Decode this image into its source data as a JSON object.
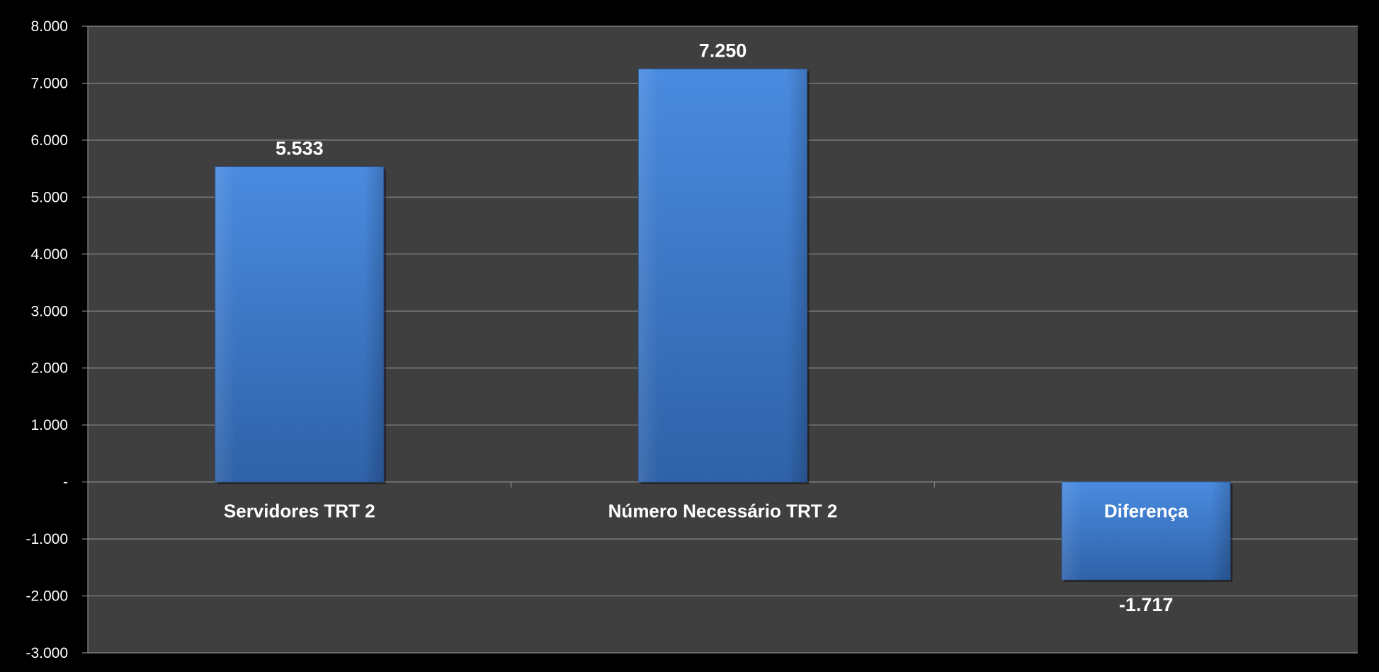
{
  "chart_data": {
    "type": "bar",
    "categories": [
      "Servidores TRT 2",
      "Número Necessário TRT 2",
      "Diferença"
    ],
    "values": [
      5533,
      7250,
      -1717
    ],
    "value_labels": [
      "5.533",
      "7.250",
      "-1.717"
    ],
    "ylim": [
      -3000,
      8000
    ],
    "y_ticks": [
      8000,
      7000,
      6000,
      5000,
      4000,
      3000,
      2000,
      1000,
      0,
      -1000,
      -2000,
      -3000
    ],
    "y_tick_labels": [
      "8.000",
      "7.000",
      "6.000",
      "5.000",
      "4.000",
      "3.000",
      "2.000",
      "1.000",
      "-",
      "-1.000",
      "-2.000",
      "-3.000"
    ],
    "title": "",
    "xlabel": "",
    "ylabel": "",
    "grid": true,
    "legend": "none",
    "colors": {
      "background": "#000000",
      "plot_area": "#3f3f3f",
      "gridline": "#8a8a8a",
      "bar_top": "#4a8be0",
      "bar_bottom": "#2f62a8",
      "text": "#ffffff"
    }
  }
}
